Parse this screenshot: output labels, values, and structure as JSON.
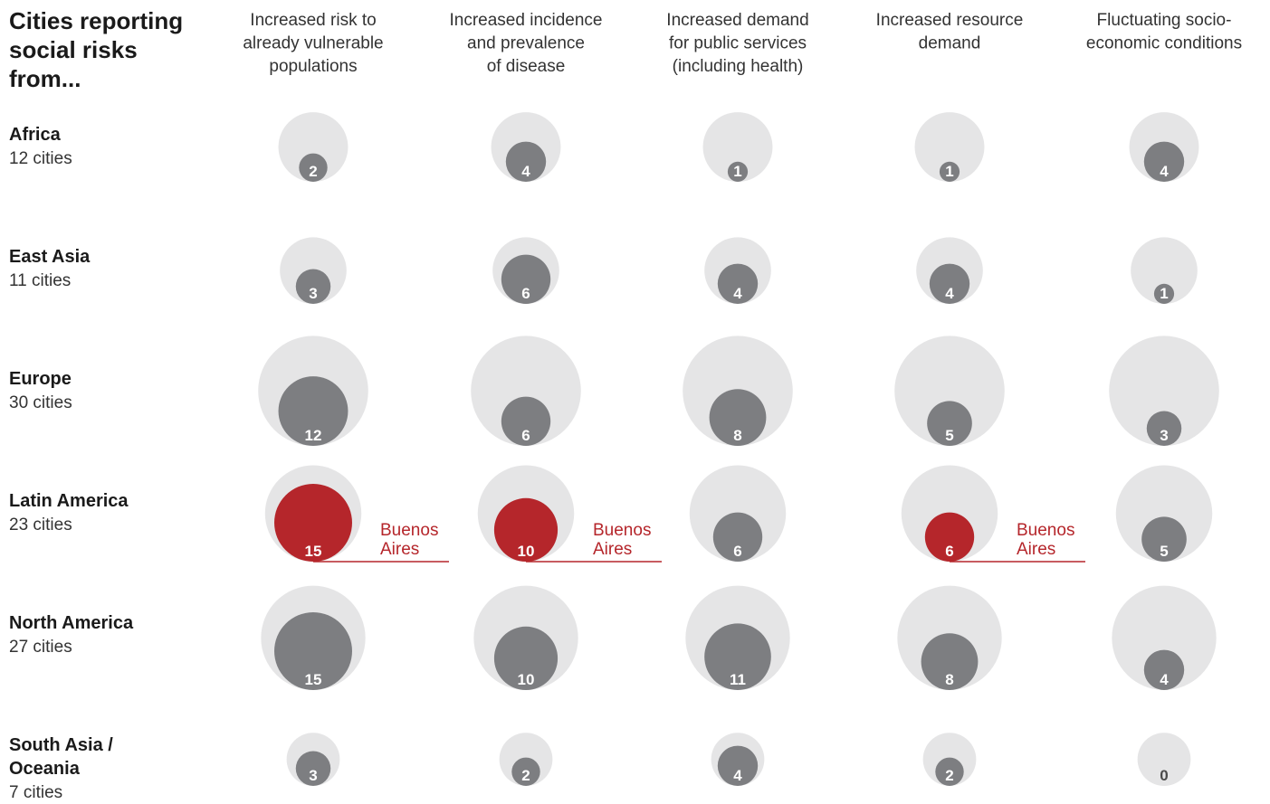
{
  "title": [
    "Cities reporting",
    "social risks",
    "from..."
  ],
  "colors": {
    "outer": "#e5e5e6",
    "inner": "#7d7e81",
    "highlight": "#b5262b"
  },
  "chart_data": {
    "type": "bubble-matrix",
    "columns": [
      [
        "Increased risk to",
        "already vulnerable",
        "populations"
      ],
      [
        "Increased incidence",
        "and prevalence",
        "of disease"
      ],
      [
        "Increased demand",
        "for public services",
        "(including health)"
      ],
      [
        "Increased resource",
        "demand"
      ],
      [
        "Fluctuating socio-",
        "economic conditions"
      ]
    ],
    "rows": [
      {
        "region": [
          "Africa"
        ],
        "total_label": "12 cities",
        "total": 12,
        "values": [
          2,
          4,
          1,
          1,
          4
        ]
      },
      {
        "region": [
          "East Asia"
        ],
        "total_label": "11 cities",
        "total": 11,
        "values": [
          3,
          6,
          4,
          4,
          1
        ]
      },
      {
        "region": [
          "Europe"
        ],
        "total_label": "30 cities",
        "total": 30,
        "values": [
          12,
          6,
          8,
          5,
          3
        ]
      },
      {
        "region": [
          "Latin America"
        ],
        "total_label": "23 cities",
        "total": 23,
        "values": [
          15,
          10,
          6,
          6,
          5
        ],
        "highlight_columns": [
          0,
          1,
          3
        ]
      },
      {
        "region": [
          "North America"
        ],
        "total_label": "27 cities",
        "total": 27,
        "values": [
          15,
          10,
          11,
          8,
          4
        ]
      },
      {
        "region": [
          "South Asia /",
          "Oceania"
        ],
        "total_label": "7 cities",
        "total": 7,
        "values": [
          3,
          2,
          4,
          2,
          0
        ]
      }
    ],
    "highlight_label": [
      "Buenos",
      "Aires"
    ]
  }
}
